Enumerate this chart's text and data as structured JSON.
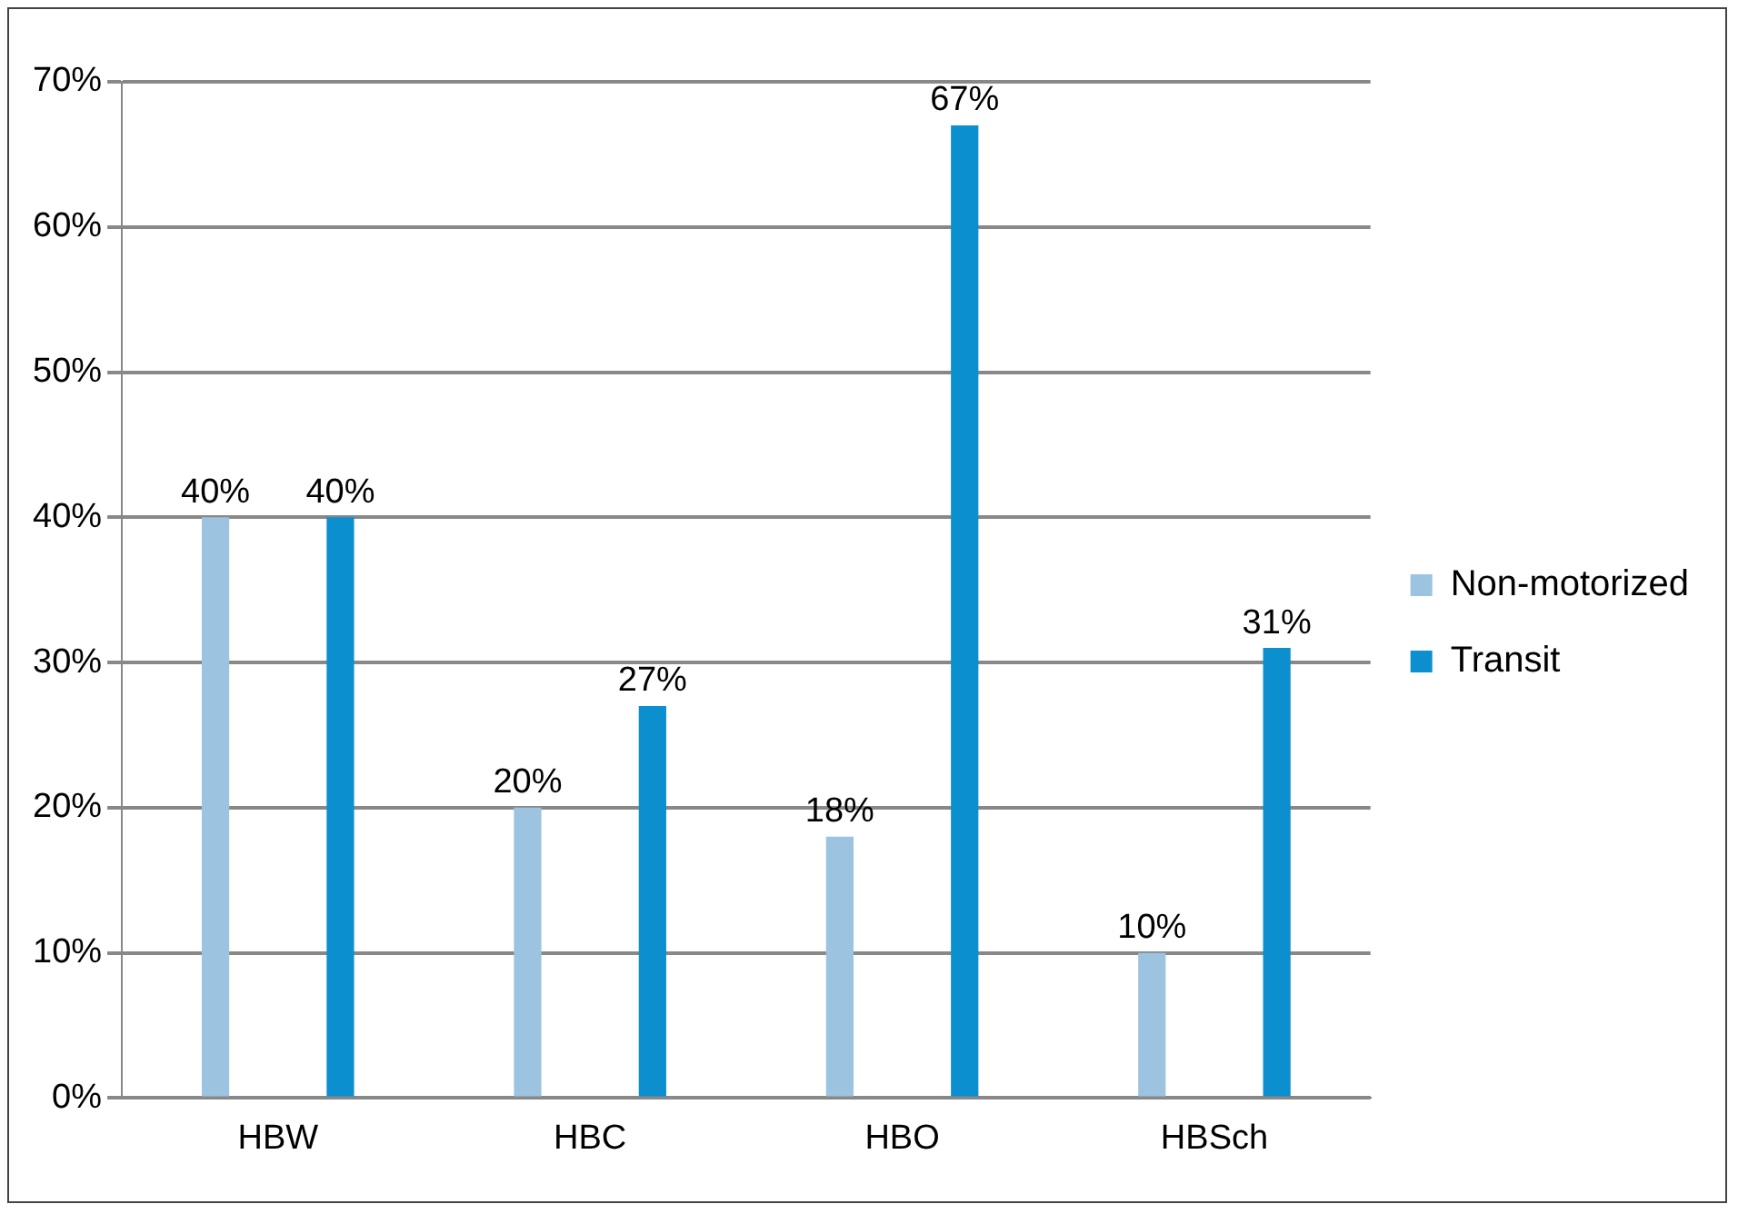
{
  "chart_data": {
    "type": "bar",
    "categories": [
      "HBW",
      "HBC",
      "HBO",
      "HBSch"
    ],
    "series": [
      {
        "name": "Non-motorized",
        "color": "#9cc3e0",
        "values": [
          40,
          20,
          18,
          10
        ],
        "value_labels": [
          "40%",
          "20%",
          "18%",
          "10%"
        ]
      },
      {
        "name": "Transit",
        "color": "#0c8fce",
        "values": [
          40,
          27,
          67,
          31
        ],
        "value_labels": [
          "40%",
          "27%",
          "67%",
          "31%"
        ]
      }
    ],
    "ylim": [
      0,
      70
    ],
    "yticks": [
      {
        "value": 0,
        "label": "0%"
      },
      {
        "value": 10,
        "label": "10%"
      },
      {
        "value": 20,
        "label": "20%"
      },
      {
        "value": 30,
        "label": "30%"
      },
      {
        "value": 40,
        "label": "40%"
      },
      {
        "value": 50,
        "label": "50%"
      },
      {
        "value": 60,
        "label": "60%"
      },
      {
        "value": 70,
        "label": "70%"
      }
    ],
    "grid": "y",
    "legend": "right"
  }
}
